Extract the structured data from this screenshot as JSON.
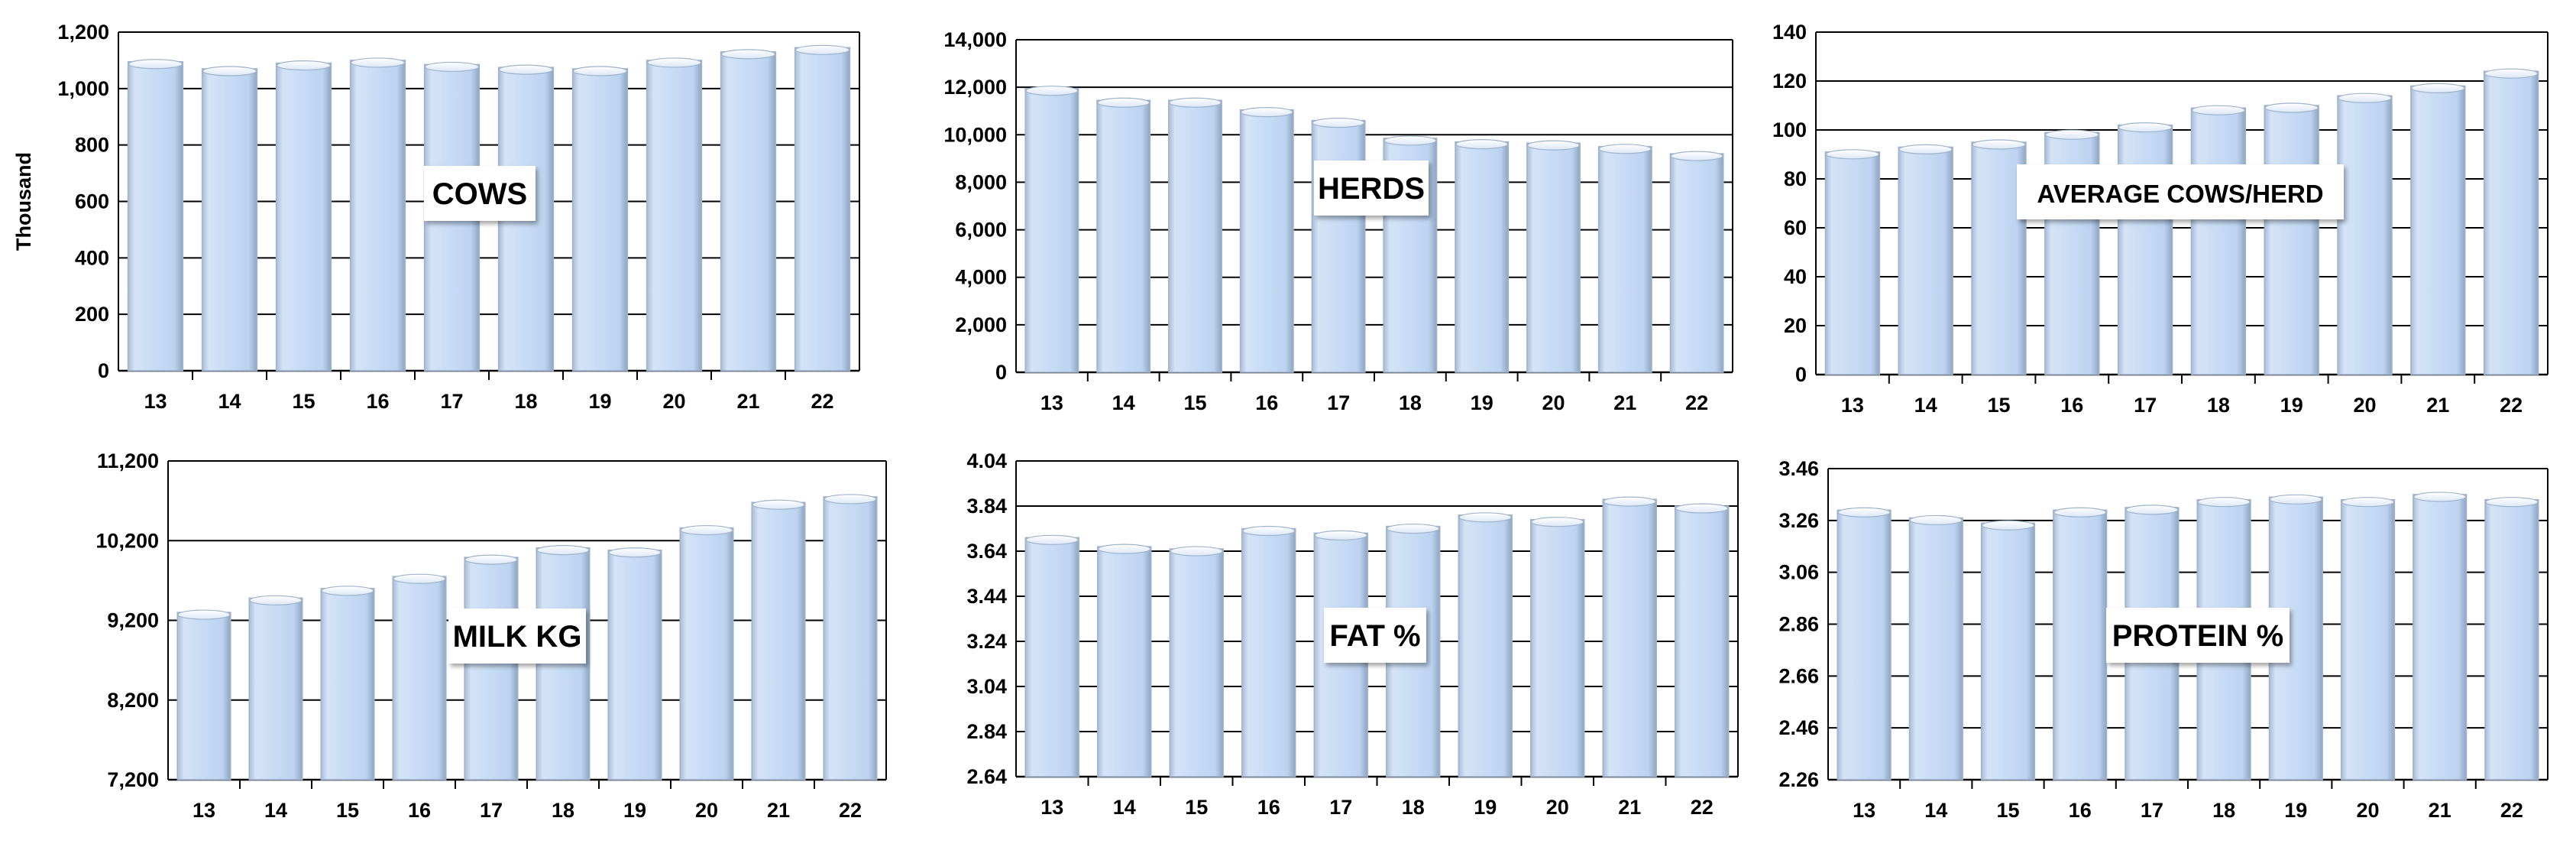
{
  "colors": {
    "bar_fill_light": "#e8f0fb",
    "bar_fill_mid": "#c6daf4",
    "bar_edge": "#9fb3cc",
    "gridline": "#000000"
  },
  "chart_data": [
    {
      "type": "bar",
      "title": "COWS",
      "ylabel": "Thousand",
      "categories": [
        "13",
        "14",
        "15",
        "16",
        "17",
        "18",
        "19",
        "20",
        "21",
        "22"
      ],
      "values": [
        1095,
        1070,
        1090,
        1100,
        1085,
        1075,
        1070,
        1100,
        1130,
        1145
      ],
      "ylim": [
        0,
        1200
      ],
      "yticks": [
        0,
        200,
        400,
        600,
        800,
        1000,
        1200
      ],
      "ytick_labels": [
        "0",
        "200",
        "400",
        "600",
        "800",
        "1,000",
        "1,200"
      ],
      "grid": true
    },
    {
      "type": "bar",
      "title": "HERDS",
      "ylabel": "",
      "categories": [
        "13",
        "14",
        "15",
        "16",
        "17",
        "18",
        "19",
        "20",
        "21",
        "22"
      ],
      "values": [
        11950,
        11450,
        11450,
        11050,
        10600,
        9850,
        9700,
        9650,
        9500,
        9200
      ],
      "ylim": [
        0,
        14000
      ],
      "yticks": [
        0,
        2000,
        4000,
        6000,
        8000,
        10000,
        12000,
        14000
      ],
      "ytick_labels": [
        "0",
        "2,000",
        "4,000",
        "6,000",
        "8,000",
        "10,000",
        "12,000",
        "14,000"
      ],
      "grid": true
    },
    {
      "type": "bar",
      "title": "AVERAGE COWS/HERD",
      "ylabel": "",
      "categories": [
        "13",
        "14",
        "15",
        "16",
        "17",
        "18",
        "19",
        "20",
        "21",
        "22"
      ],
      "values": [
        91,
        93,
        95,
        99,
        102,
        109,
        110,
        114,
        118,
        124
      ],
      "ylim": [
        0,
        140
      ],
      "yticks": [
        0,
        20,
        40,
        60,
        80,
        100,
        120,
        140
      ],
      "ytick_labels": [
        "0",
        "20",
        "40",
        "60",
        "80",
        "100",
        "120",
        "140"
      ],
      "grid": true
    },
    {
      "type": "bar",
      "title": "MILK KG",
      "ylabel": "",
      "categories": [
        "13",
        "14",
        "15",
        "16",
        "17",
        "18",
        "19",
        "20",
        "21",
        "22"
      ],
      "values": [
        9300,
        9480,
        9600,
        9750,
        9990,
        10110,
        10080,
        10360,
        10680,
        10750
      ],
      "ylim": [
        7200,
        11200
      ],
      "yticks": [
        7200,
        8200,
        9200,
        10200,
        11200
      ],
      "ytick_labels": [
        "7,200",
        "8,200",
        "9,200",
        "10,200",
        "11,200"
      ],
      "grid": true
    },
    {
      "type": "bar",
      "title": "FAT %",
      "ylabel": "",
      "categories": [
        "13",
        "14",
        "15",
        "16",
        "17",
        "18",
        "19",
        "20",
        "21",
        "22"
      ],
      "values": [
        3.7,
        3.66,
        3.65,
        3.74,
        3.72,
        3.75,
        3.8,
        3.78,
        3.87,
        3.84
      ],
      "ylim": [
        2.64,
        4.04
      ],
      "yticks": [
        2.64,
        2.84,
        3.04,
        3.24,
        3.44,
        3.64,
        3.84,
        4.04
      ],
      "ytick_labels": [
        "2.64",
        "2.84",
        "3.04",
        "3.24",
        "3.44",
        "3.64",
        "3.84",
        "4.04"
      ],
      "grid": true
    },
    {
      "type": "bar",
      "title": "PROTEIN %",
      "ylabel": "",
      "categories": [
        "13",
        "14",
        "15",
        "16",
        "17",
        "18",
        "19",
        "20",
        "21",
        "22"
      ],
      "values": [
        3.3,
        3.27,
        3.25,
        3.3,
        3.31,
        3.34,
        3.35,
        3.34,
        3.36,
        3.34
      ],
      "ylim": [
        2.26,
        3.46
      ],
      "yticks": [
        2.26,
        2.46,
        2.66,
        2.86,
        3.06,
        3.26,
        3.46
      ],
      "ytick_labels": [
        "2.26",
        "2.46",
        "2.66",
        "2.86",
        "3.06",
        "3.26",
        "3.46"
      ],
      "grid": true
    }
  ]
}
